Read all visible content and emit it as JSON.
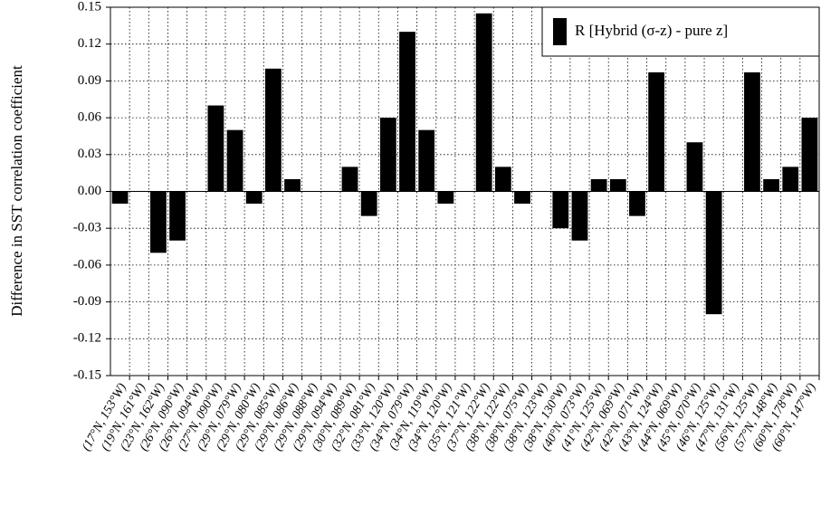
{
  "chart_data": {
    "type": "bar",
    "ylabel": "Difference in SST correlation coefficient",
    "legend": "R [Hybrid (σ-z) - pure z]",
    "legend_position": "upper right",
    "color": "#000000",
    "grid": true,
    "categories": [
      "(17°N, 153°W)",
      "(19°N, 161°W)",
      "(23°N, 162°W)",
      "(26°N, 090°W)",
      "(26°N, 094°W)",
      "(27°N, 090°W)",
      "(29°N, 079°W)",
      "(29°N, 080°W)",
      "(29°N, 085°W)",
      "(29°N, 086°W)",
      "(29°N, 088°W)",
      "(29°N, 094°W)",
      "(30°N, 089°W)",
      "(32°N, 081°W)",
      "(33°N, 120°W)",
      "(34°N, 079°W)",
      "(34°N, 119°W)",
      "(34°N, 120°W)",
      "(35°N, 121°W)",
      "(37°N, 122°W)",
      "(38°N, 122°W)",
      "(38°N, 075°W)",
      "(38°N, 123°W)",
      "(38°N, 130°W)",
      "(40°N, 073°W)",
      "(41°N, 125°W)",
      "(42°N, 069°W)",
      "(42°N, 071°W)",
      "(43°N, 124°W)",
      "(44°N, 069°W)",
      "(45°N, 070°W)",
      "(46°N, 125°W)",
      "(47°N, 131°W)",
      "(56°N, 125°W)",
      "(57°N, 148°W)",
      "(60°N, 178°W)",
      "(60°N, 147°W)"
    ],
    "values": [
      -0.01,
      0,
      -0.05,
      -0.04,
      0,
      0.07,
      0.05,
      -0.01,
      0.1,
      0.01,
      0,
      0,
      0.02,
      -0.02,
      0.06,
      0.13,
      0.05,
      -0.01,
      0,
      0.145,
      0.02,
      -0.01,
      0,
      -0.03,
      -0.04,
      0.01,
      0.01,
      -0.02,
      0.097,
      0,
      0.04,
      -0.1,
      0,
      0.097,
      0.01,
      0.02,
      0.06
    ],
    "ylim": [
      -0.15,
      0.15
    ],
    "yticks": [
      -0.15,
      -0.12,
      -0.09,
      -0.06,
      -0.03,
      {
        "value": 0,
        "label": "0.00"
      },
      0.03,
      0.06,
      0.09,
      0.12,
      0.15
    ]
  }
}
